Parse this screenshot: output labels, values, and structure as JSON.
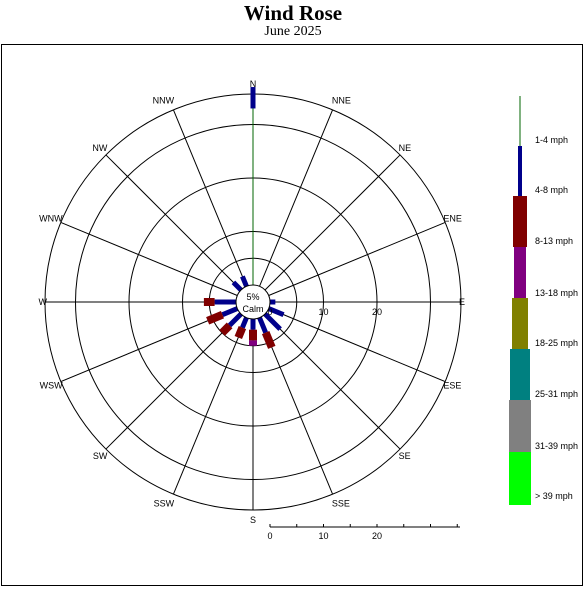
{
  "header": {
    "title": "Wind Rose",
    "subtitle": "June 2025"
  },
  "chart_data": {
    "type": "wind-rose",
    "title": "Wind Rose",
    "subtitle": "June 2025",
    "radial_unit": "%",
    "radial_ticks": [
      0,
      10,
      20
    ],
    "radial_max": 39,
    "calm": {
      "value": "5%",
      "label": "Calm",
      "percent": 5
    },
    "directions": [
      "N",
      "NNE",
      "NE",
      "ENE",
      "E",
      "ESE",
      "SE",
      "SSE",
      "S",
      "SSW",
      "SW",
      "WSW",
      "W",
      "WNW",
      "NW",
      "NNW"
    ],
    "speed_bins": [
      {
        "label": "1-4 mph",
        "color": "#006400"
      },
      {
        "label": "4-8 mph",
        "color": "#00008B"
      },
      {
        "label": "8-13 mph",
        "color": "#800000"
      },
      {
        "label": "13-18 mph",
        "color": "#800080"
      },
      {
        "label": "18-25 mph",
        "color": "#808000"
      },
      {
        "label": "25-31 mph",
        "color": "#008080"
      },
      {
        "label": "31-39 mph",
        "color": "#808080"
      },
      {
        "label": "> 39 mph",
        "color": "#00FF00"
      }
    ],
    "series": [
      {
        "name": "1-4 mph",
        "values": [
          33,
          0,
          0,
          0,
          0,
          0,
          0,
          0,
          0,
          0,
          0,
          0,
          0,
          0,
          0,
          0
        ]
      },
      {
        "name": "4-8 mph",
        "values": [
          4,
          0,
          0,
          0,
          1,
          3,
          4,
          3,
          2,
          2,
          3,
          3,
          4,
          0,
          2,
          2
        ]
      },
      {
        "name": "8-13 mph",
        "values": [
          0,
          0,
          0,
          0,
          0,
          0,
          0,
          3,
          2,
          2,
          2,
          3,
          2,
          0,
          0,
          0
        ]
      },
      {
        "name": "13-18 mph",
        "values": [
          0,
          0,
          0,
          0,
          0,
          0,
          0,
          0,
          1,
          0,
          0,
          0,
          0,
          0,
          0,
          0
        ]
      }
    ],
    "scale_bar_ticks": [
      0,
      10,
      20
    ]
  }
}
